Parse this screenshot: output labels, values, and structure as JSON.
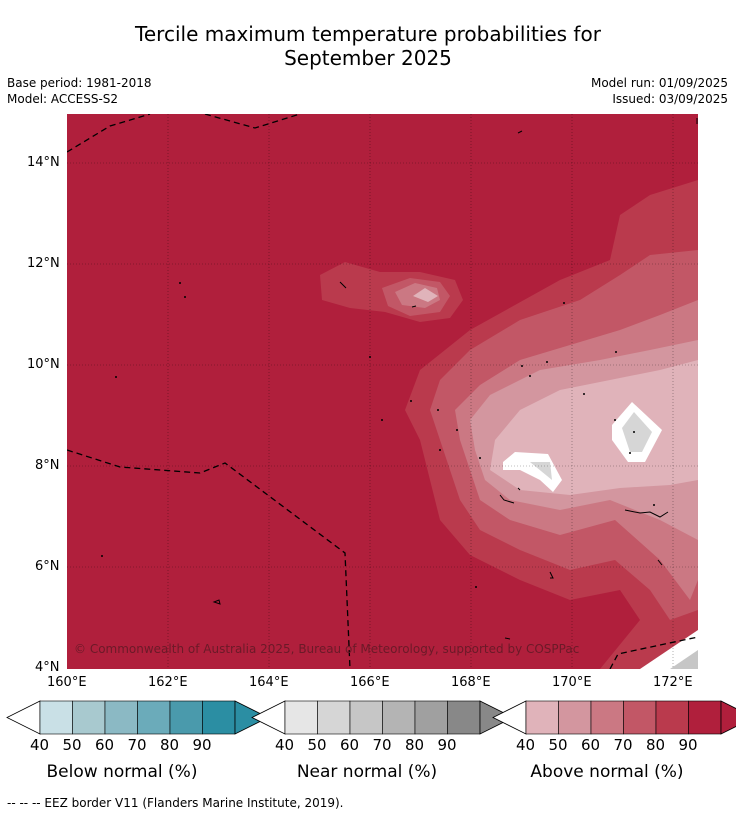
{
  "title": {
    "line1": "Tercile maximum temperature probabilities for",
    "line2": "September 2025"
  },
  "meta": {
    "base_period": "Base period: 1981-2018",
    "model": "Model: ACCESS-S2",
    "model_run": "Model run: 01/09/2025",
    "issued": "Issued: 03/09/2025"
  },
  "map": {
    "lon_labels": [
      "160°E",
      "162°E",
      "164°E",
      "166°E",
      "168°E",
      "170°E",
      "172°E"
    ],
    "lat_labels": [
      "14°N",
      "12°N",
      "10°N",
      "8°N",
      "6°N",
      "4°N"
    ],
    "copyright": "© Commonwealth of Australia 2025, Bureau of Meteorology, supported by COSPPac"
  },
  "colorbars": [
    {
      "label": "Below normal (%)",
      "ticks": [
        "40",
        "50",
        "60",
        "70",
        "80",
        "90"
      ],
      "colors": [
        "#c9e0e6",
        "#a8c9cf",
        "#8bb9c4",
        "#6babba",
        "#4a9aac",
        "#2b8ea3"
      ]
    },
    {
      "label": "Near normal (%)",
      "ticks": [
        "40",
        "50",
        "60",
        "70",
        "80",
        "90"
      ],
      "colors": [
        "#e6e6e6",
        "#d6d6d6",
        "#c6c6c6",
        "#b4b4b4",
        "#a0a0a0",
        "#888888"
      ]
    },
    {
      "label": "Above normal (%)",
      "ticks": [
        "40",
        "50",
        "60",
        "70",
        "80",
        "90"
      ],
      "colors": [
        "#e0b3ba",
        "#d3969f",
        "#cb7883",
        "#c25766",
        "#ba3a4d",
        "#b01f3c"
      ]
    }
  ],
  "footer": "--  --  -- EEZ border V11 (Flanders Marine Institute, 2019)."
}
